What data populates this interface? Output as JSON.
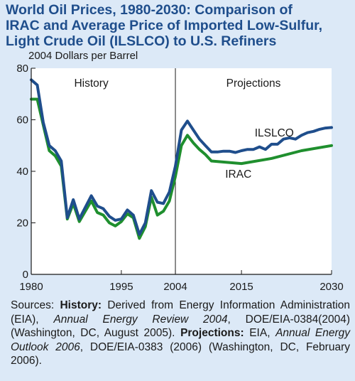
{
  "title_lines": [
    "World Oil Prices, 1980-2030: Comparison of",
    "IRAC and Average Price of Imported Low-Sulfur,",
    "Light Crude Oil (ILSLCO) to U.S. Refiners"
  ],
  "colors": {
    "background": "#dce9f7",
    "title": "#1f4e8c",
    "plot_background": "#ffffff",
    "ilslco": "#1f4e8c",
    "irac": "#1f8f2e",
    "axis": "#1a1a1a"
  },
  "chart_data": {
    "type": "line",
    "ylabel": "2004 Dollars per Barrel",
    "xlim": [
      1980,
      2030
    ],
    "ylim": [
      0,
      80
    ],
    "yticks": [
      0,
      20,
      40,
      60,
      80
    ],
    "xticks": [
      1980,
      1995,
      2004,
      2015,
      2030
    ],
    "divider_x": 2004,
    "region_labels": [
      {
        "text": "History",
        "x": 1990
      },
      {
        "text": "Projections",
        "x": 2017
      }
    ],
    "grid": false,
    "series": [
      {
        "name": "ILSLCO",
        "color": "#1f4e8c",
        "x": [
          1980,
          1981,
          1982,
          1983,
          1984,
          1985,
          1986,
          1987,
          1988,
          1989,
          1990,
          1991,
          1992,
          1993,
          1994,
          1995,
          1996,
          1997,
          1998,
          1999,
          2000,
          2001,
          2002,
          2003,
          2004,
          2005,
          2006,
          2007,
          2008,
          2009,
          2010,
          2011,
          2012,
          2013,
          2014,
          2015,
          2016,
          2017,
          2018,
          2019,
          2020,
          2021,
          2022,
          2023,
          2024,
          2025,
          2026,
          2027,
          2028,
          2029,
          2030
        ],
        "values": [
          75.5,
          73.5,
          59,
          50,
          48,
          44,
          22,
          29,
          21.5,
          26,
          30.5,
          26.5,
          25.5,
          22.5,
          21,
          21.5,
          25,
          23,
          15.5,
          20,
          32.5,
          28,
          27.5,
          32,
          42,
          56,
          59.5,
          56,
          52.5,
          50,
          47.5,
          47.5,
          47.8,
          47.8,
          47.3,
          48,
          48.5,
          48.5,
          49.5,
          48.5,
          50.5,
          50.5,
          52.5,
          53,
          52.5,
          54,
          55,
          55.5,
          56.3,
          56.8,
          57
        ]
      },
      {
        "name": "IRAC",
        "color": "#1f8f2e",
        "x": [
          1980,
          1981,
          1982,
          1983,
          1984,
          1985,
          1986,
          1987,
          1988,
          1989,
          1990,
          1991,
          1992,
          1993,
          1994,
          1995,
          1996,
          1997,
          1998,
          1999,
          2000,
          2001,
          2002,
          2003,
          2004,
          2005,
          2006,
          2007,
          2008,
          2009,
          2010,
          2015,
          2020,
          2025,
          2030
        ],
        "values": [
          68,
          68,
          58,
          48,
          46,
          42,
          21.5,
          27.5,
          20.5,
          24.5,
          28.5,
          24,
          23,
          20,
          18.8,
          20.5,
          23.5,
          22,
          14,
          18.5,
          30,
          23,
          24.5,
          28.5,
          38,
          50,
          54,
          51,
          48.5,
          46.5,
          44,
          43,
          45,
          48,
          50
        ]
      }
    ],
    "series_labels": [
      {
        "text": "ILSLCO",
        "x": 2017.2,
        "y": 53.5
      },
      {
        "text": "IRAC",
        "x": 2012.3,
        "y": 37.5
      }
    ]
  },
  "sources": {
    "prefix": "Sources: ",
    "history_label": "History:",
    "history_text": " Derived from Energy Information Administration (EIA), ",
    "history_pub": "Annual Energy Review 2004",
    "history_tail": ", DOE/EIA-0384(2004) (Washington, DC, August 2005). ",
    "projections_label": "Projections:",
    "projections_text": " EIA, ",
    "projections_pub": "Annual Energy Outlook 2006",
    "projections_tail": ", DOE/EIA-0383 (2006) (Washington, DC, February 2006)."
  }
}
